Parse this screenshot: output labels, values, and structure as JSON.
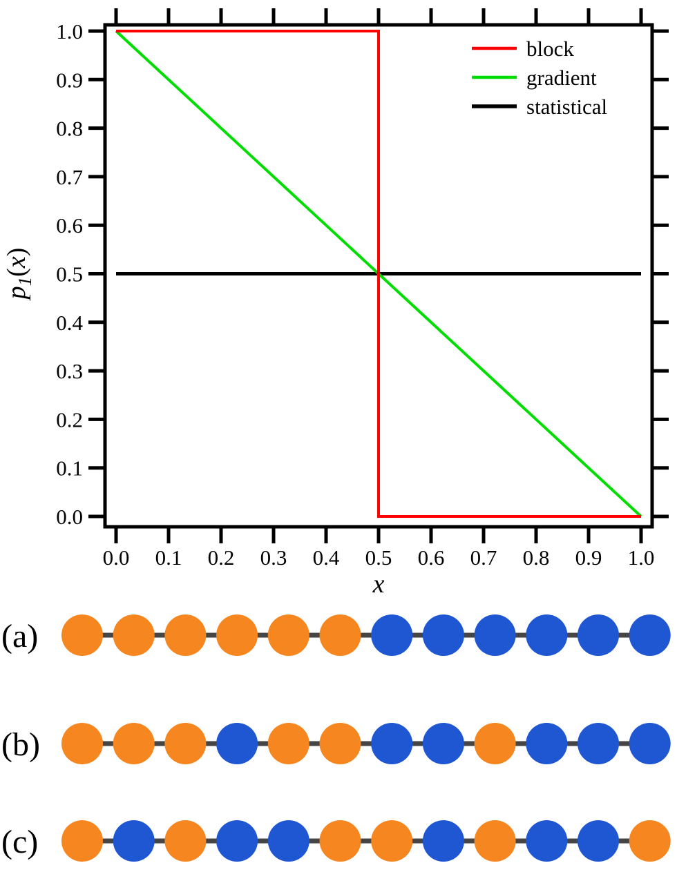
{
  "chart_data": {
    "type": "line",
    "title": "",
    "xlabel": "x",
    "ylabel": "p1(x)",
    "ylabel_parts": {
      "base": "p",
      "sub": "1",
      "open": "(",
      "arg": "x",
      "close": ")"
    },
    "xlim": [
      0.0,
      1.0
    ],
    "ylim": [
      0.0,
      1.0
    ],
    "grid": false,
    "legend_position": "top-right",
    "x_ticks": [
      0.0,
      0.1,
      0.2,
      0.3,
      0.4,
      0.5,
      0.6,
      0.7,
      0.8,
      0.9,
      1.0
    ],
    "x_tick_labels": [
      "0.0",
      "0.1",
      "0.2",
      "0.3",
      "0.4",
      "0.5",
      "0.6",
      "0.7",
      "0.8",
      "0.9",
      "1.0"
    ],
    "y_ticks": [
      0.0,
      0.1,
      0.2,
      0.3,
      0.4,
      0.5,
      0.6,
      0.7,
      0.8,
      0.9,
      1.0
    ],
    "y_tick_labels": [
      "0.0",
      "0.1",
      "0.2",
      "0.3",
      "0.4",
      "0.5",
      "0.6",
      "0.7",
      "0.8",
      "0.9",
      "1.0"
    ],
    "series": [
      {
        "name": "block",
        "color": "#ff0000",
        "width": 4,
        "points": [
          [
            0.0,
            1.0
          ],
          [
            0.5,
            1.0
          ],
          [
            0.5,
            0.0
          ],
          [
            1.0,
            0.0
          ]
        ]
      },
      {
        "name": "gradient",
        "color": "#00dd00",
        "width": 4,
        "points": [
          [
            0.0,
            1.0
          ],
          [
            1.0,
            0.0
          ]
        ]
      },
      {
        "name": "statistical",
        "color": "#000000",
        "width": 5,
        "points": [
          [
            0.0,
            0.5
          ],
          [
            1.0,
            0.5
          ]
        ]
      }
    ]
  },
  "chains": {
    "bead_colors": {
      "A": "#f6861f",
      "B": "#1f56d2"
    },
    "bond_color": "#454545",
    "rows": [
      {
        "label": "(a)",
        "sequence": [
          "A",
          "A",
          "A",
          "A",
          "A",
          "A",
          "B",
          "B",
          "B",
          "B",
          "B",
          "B"
        ]
      },
      {
        "label": "(b)",
        "sequence": [
          "A",
          "A",
          "A",
          "B",
          "A",
          "A",
          "B",
          "B",
          "A",
          "B",
          "B",
          "B"
        ]
      },
      {
        "label": "(c)",
        "sequence": [
          "A",
          "B",
          "A",
          "B",
          "B",
          "A",
          "A",
          "B",
          "A",
          "B",
          "B",
          "A"
        ]
      }
    ]
  }
}
